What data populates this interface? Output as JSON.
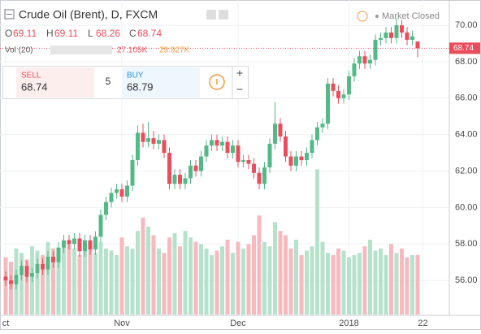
{
  "chart_data": {
    "type": "candlestick",
    "title": "Crude Oil (Brent), D, FXCM",
    "market_status": "Market Closed",
    "ohlc_labels": [
      "O",
      "H",
      "L",
      "C"
    ],
    "categories": [
      "ct",
      null,
      null,
      null,
      null,
      null,
      null,
      null,
      null,
      null,
      null,
      null,
      null,
      null,
      null,
      null,
      null,
      null,
      null,
      null,
      null,
      null,
      "Nov",
      null,
      null,
      null,
      null,
      null,
      null,
      null,
      null,
      null,
      null,
      null,
      null,
      null,
      null,
      null,
      null,
      null,
      null,
      null,
      null,
      null,
      "Dec",
      null,
      null,
      null,
      null,
      null,
      null,
      null,
      null,
      null,
      null,
      null,
      null,
      null,
      null,
      null,
      null,
      null,
      null,
      null,
      null,
      "2018",
      null,
      null,
      null,
      null,
      null,
      null,
      null,
      null,
      null,
      null,
      null,
      null,
      null,
      "22"
    ],
    "open": [
      56.2,
      56.0,
      55.8,
      56.3,
      56.8,
      56.2,
      56.4,
      56.9,
      56.6,
      57.3,
      57.0,
      57.8,
      58.2,
      58.0,
      58.3,
      57.6,
      58.2,
      57.7,
      58.4,
      59.6,
      60.3,
      60.8,
      61.0,
      60.6,
      61.2,
      62.6,
      64.1,
      63.6,
      63.8,
      63.5,
      63.7,
      63.0,
      61.3,
      61.8,
      61.3,
      61.6,
      62.3,
      62.0,
      62.8,
      63.4,
      63.7,
      63.4,
      63.6,
      63.0,
      63.4,
      62.5,
      62.6,
      62.4,
      61.9,
      61.3,
      62.2,
      63.5,
      64.6,
      63.9,
      62.8,
      62.3,
      62.8,
      62.6,
      63.0,
      63.7,
      64.4,
      64.6,
      66.8,
      66.4,
      66.0,
      66.2,
      67.2,
      67.9,
      68.3,
      67.9,
      68.1,
      69.2,
      69.3,
      69.6,
      69.3,
      70.0,
      69.6,
      69.2,
      69.11,
      null
    ],
    "high": [
      56.5,
      56.3,
      56.6,
      57.1,
      57.1,
      56.7,
      57.2,
      57.2,
      57.6,
      57.6,
      58.1,
      58.5,
      58.5,
      58.6,
      58.6,
      58.5,
      58.5,
      58.7,
      59.9,
      60.6,
      61.1,
      61.3,
      61.3,
      61.5,
      62.9,
      64.5,
      64.6,
      64.7,
      64.2,
      64.0,
      64.0,
      63.3,
      62.1,
      62.1,
      61.9,
      62.6,
      62.6,
      63.1,
      63.7,
      64.0,
      64.0,
      63.9,
      63.9,
      63.7,
      63.7,
      62.9,
      62.9,
      62.7,
      62.2,
      62.5,
      63.8,
      65.8,
      64.9,
      64.2,
      63.1,
      63.1,
      63.1,
      63.3,
      64.0,
      64.7,
      64.9,
      67.1,
      67.1,
      66.7,
      66.5,
      67.5,
      68.2,
      68.6,
      68.6,
      68.4,
      69.5,
      69.6,
      69.9,
      69.9,
      70.4,
      70.3,
      69.9,
      69.7,
      69.11,
      null
    ],
    "low": [
      55.7,
      55.5,
      55.5,
      56.0,
      55.9,
      55.9,
      56.1,
      56.3,
      56.3,
      56.7,
      56.7,
      57.5,
      57.7,
      57.7,
      57.3,
      57.3,
      57.4,
      57.4,
      58.1,
      59.3,
      60.0,
      60.5,
      60.3,
      60.3,
      60.9,
      62.3,
      63.3,
      63.3,
      63.2,
      63.2,
      62.7,
      61.0,
      61.0,
      61.0,
      61.0,
      61.3,
      61.7,
      61.7,
      62.5,
      63.1,
      63.1,
      63.1,
      62.7,
      62.7,
      62.2,
      62.2,
      62.1,
      61.6,
      61.0,
      61.0,
      61.9,
      63.2,
      63.6,
      62.5,
      62.0,
      62.0,
      62.3,
      62.3,
      62.7,
      63.4,
      64.1,
      64.3,
      66.1,
      65.7,
      65.7,
      65.9,
      66.9,
      67.6,
      67.6,
      67.6,
      67.8,
      68.9,
      69.0,
      69.0,
      69.0,
      69.3,
      68.9,
      68.9,
      68.26,
      null
    ],
    "close": [
      56.0,
      55.8,
      56.3,
      56.8,
      56.2,
      56.4,
      56.9,
      56.6,
      57.3,
      57.0,
      57.8,
      58.2,
      58.0,
      58.3,
      57.6,
      58.2,
      57.7,
      58.4,
      59.6,
      60.3,
      60.8,
      61.0,
      60.6,
      61.2,
      62.6,
      64.1,
      63.6,
      63.8,
      63.5,
      63.7,
      63.0,
      61.3,
      61.8,
      61.3,
      61.6,
      62.3,
      62.0,
      62.8,
      63.4,
      63.7,
      63.4,
      63.6,
      63.0,
      63.4,
      62.5,
      62.6,
      62.4,
      61.9,
      61.3,
      62.2,
      63.5,
      64.6,
      63.9,
      62.8,
      62.3,
      62.8,
      62.6,
      63.0,
      63.7,
      64.4,
      64.6,
      66.8,
      66.4,
      66.0,
      66.2,
      67.2,
      67.9,
      68.3,
      67.9,
      68.1,
      69.2,
      69.3,
      69.6,
      69.3,
      70.0,
      69.6,
      69.2,
      69.4,
      68.74,
      null
    ],
    "volume": [
      26000,
      24000,
      30000,
      28000,
      25000,
      31000,
      29000,
      27000,
      33000,
      30000,
      28000,
      32000,
      34000,
      30000,
      27000,
      29000,
      31000,
      28000,
      33000,
      30000,
      29000,
      27000,
      35000,
      31000,
      30000,
      38000,
      44000,
      40000,
      36000,
      30000,
      28000,
      35000,
      37000,
      31000,
      38000,
      35000,
      33000,
      32000,
      30000,
      27000,
      29000,
      31000,
      34000,
      28000,
      33000,
      30000,
      32000,
      36000,
      45000,
      33000,
      31000,
      42000,
      38000,
      36000,
      30000,
      34000,
      27000,
      29000,
      31000,
      66000,
      33000,
      28000,
      27000,
      30000,
      29000,
      26000,
      27000,
      28000,
      31000,
      34000,
      29000,
      30000,
      27000,
      32000,
      28000,
      30000,
      26000,
      27000,
      27105,
      null
    ],
    "volume_value_labels": {
      "78": "27.105K"
    },
    "volume_name": "Vol (20)",
    "volume_ma_value": 29927,
    "volume_ma_value_label": "29.927K",
    "up_color": "#53b987",
    "down_color": "#eb4d5c",
    "up_volume_color": "#b6e2cc",
    "down_volume_color": "#f7b9be",
    "ylim": [
      54.13,
      71.03
    ],
    "y2lim": [
      0,
      140000
    ],
    "yticks": [
      {
        "value": 56,
        "label": "56.00"
      },
      {
        "value": 58,
        "label": "58.00"
      },
      {
        "value": 60,
        "label": "60.00"
      },
      {
        "value": 62,
        "label": "62.00"
      },
      {
        "value": 64,
        "label": "64.00"
      },
      {
        "value": 66,
        "label": "66.00"
      },
      {
        "value": 68,
        "label": "68.00"
      },
      {
        "value": 70,
        "label": "70.00"
      }
    ],
    "grid": true,
    "trade_widget": {
      "sell_label": "SELL",
      "buy_label": "BUY",
      "buy": 68.79,
      "spread": 5
    }
  }
}
